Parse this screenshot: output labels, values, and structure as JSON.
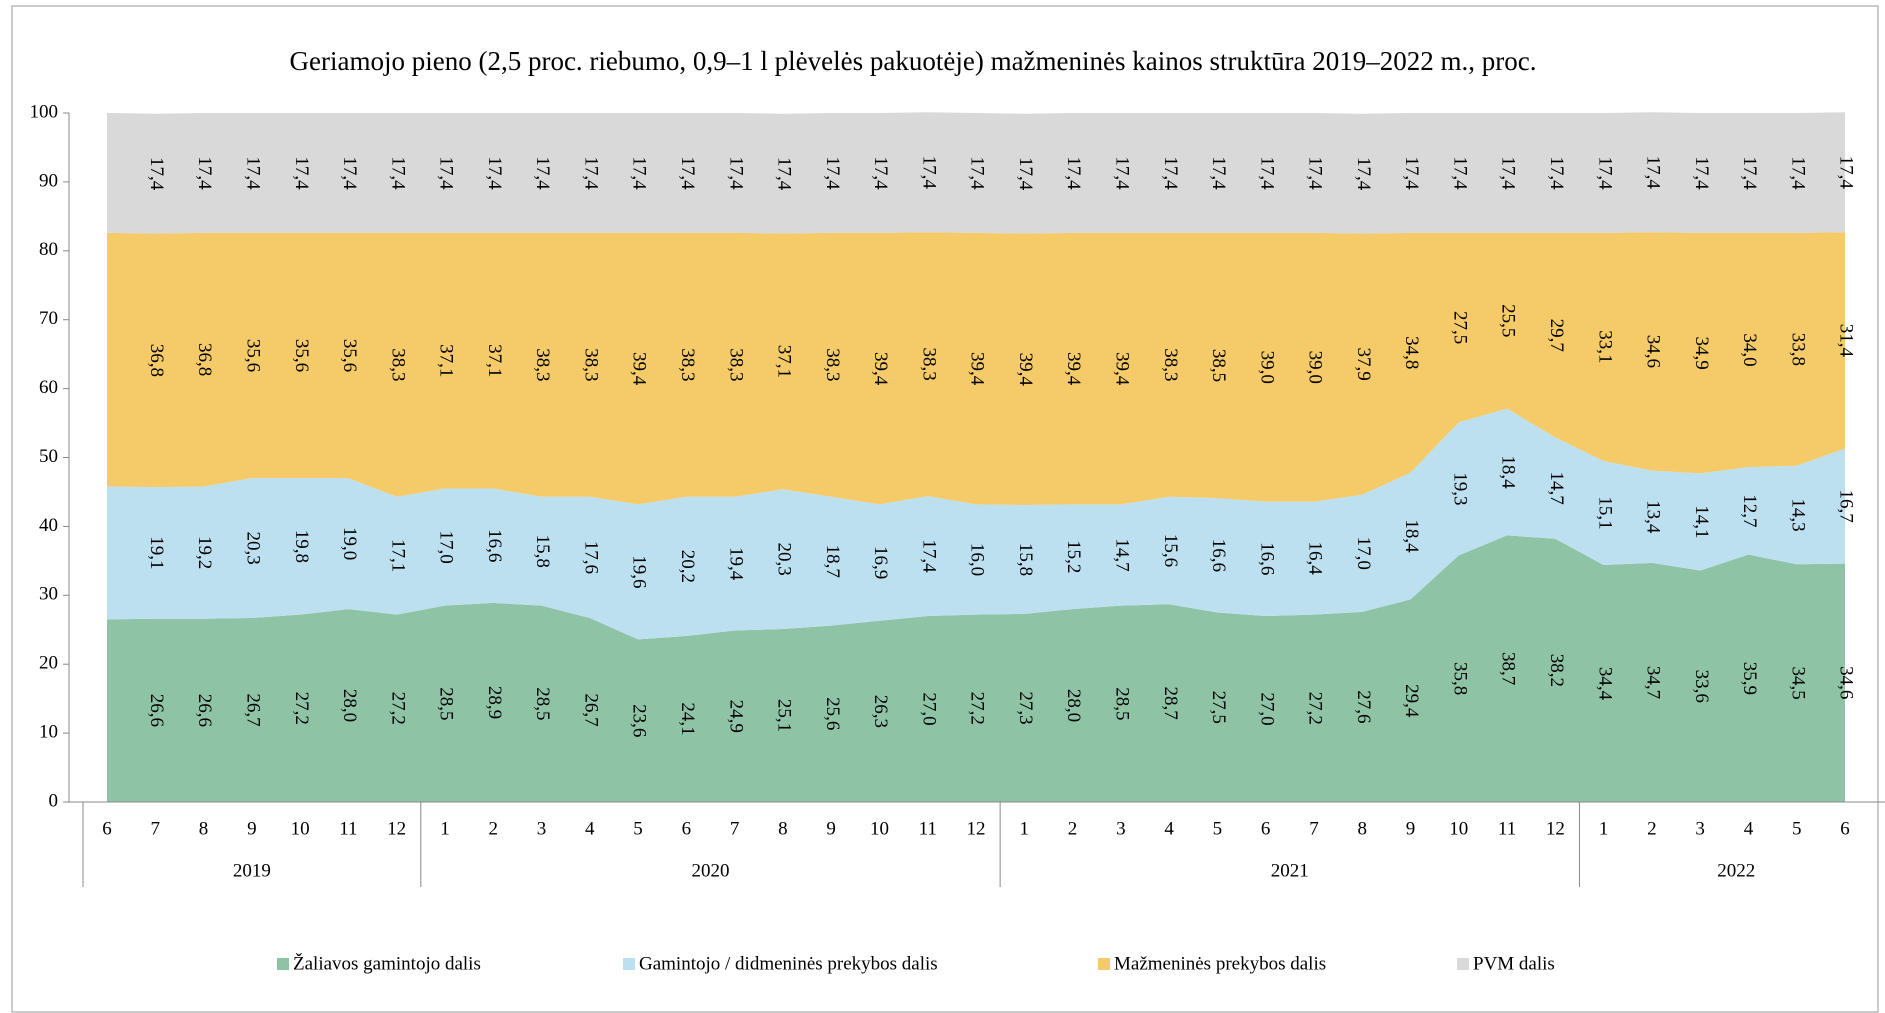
{
  "chart_data": {
    "type": "stacked_area",
    "title": "Geriamojo pieno (2,5 proc. riebumo, 0,9–1 l plėvelės pakuotėje) mažmeninės kainos struktūra 2019–2022 m., proc.",
    "categories": [
      "6",
      "7",
      "8",
      "9",
      "10",
      "11",
      "12",
      "1",
      "2",
      "3",
      "4",
      "5",
      "6",
      "7",
      "8",
      "9",
      "10",
      "11",
      "12",
      "1",
      "2",
      "3",
      "4",
      "5",
      "6",
      "7",
      "8",
      "9",
      "10",
      "11",
      "12",
      "1",
      "2",
      "3",
      "4",
      "5",
      "6"
    ],
    "x_groups": [
      {
        "label": "2019",
        "count": 7
      },
      {
        "label": "2020",
        "count": 12
      },
      {
        "label": "2021",
        "count": 12
      },
      {
        "label": "2022",
        "count": 6
      }
    ],
    "ylim": [
      0,
      100
    ],
    "yticks": [
      0,
      10,
      20,
      30,
      40,
      50,
      60,
      70,
      80,
      90,
      100
    ],
    "series": [
      {
        "name": "Žaliavos gamintojo dalis",
        "color": "#8fc3a6",
        "values": [
          26.5,
          26.6,
          26.6,
          26.7,
          27.2,
          28.0,
          27.2,
          28.5,
          28.9,
          28.5,
          26.7,
          23.6,
          24.1,
          24.9,
          25.1,
          25.6,
          26.3,
          27.0,
          27.2,
          27.3,
          28.0,
          28.5,
          28.7,
          27.5,
          27.0,
          27.2,
          27.6,
          29.4,
          35.8,
          38.7,
          38.2,
          34.4,
          34.7,
          33.6,
          35.9,
          34.5,
          34.6
        ],
        "value_labels": [
          null,
          "26,6",
          "26,6",
          "26,7",
          "27,2",
          "28,0",
          "27,2",
          "28,5",
          "28,9",
          "28,5",
          "26,7",
          "23,6",
          "24,1",
          "24,9",
          "25,1",
          "25,6",
          "26,3",
          "27,0",
          "27,2",
          "27,3",
          "28,0",
          "28,5",
          "28,7",
          "27,5",
          "27,0",
          "27,2",
          "27,6",
          "29,4",
          "35,8",
          "38,7",
          "38,2",
          "34,4",
          "34,7",
          "33,6",
          "35,9",
          "34,5",
          "34,6"
        ]
      },
      {
        "name": "Gamintojo / didmeninės prekybos dalis",
        "color": "#bde0f0",
        "values": [
          19.3,
          19.1,
          19.2,
          20.3,
          19.8,
          19.0,
          17.1,
          17.0,
          16.6,
          15.8,
          17.6,
          19.6,
          20.2,
          19.4,
          20.3,
          18.7,
          16.9,
          17.4,
          16.0,
          15.8,
          15.2,
          14.7,
          15.6,
          16.6,
          16.6,
          16.4,
          17.0,
          18.4,
          19.3,
          18.4,
          14.7,
          15.1,
          13.4,
          14.1,
          12.7,
          14.3,
          16.7
        ],
        "value_labels": [
          null,
          "19,1",
          "19,2",
          "20,3",
          "19,8",
          "19,0",
          "17,1",
          "17,0",
          "16,6",
          "15,8",
          "17,6",
          "19,6",
          "20,2",
          "19,4",
          "20,3",
          "18,7",
          "16,9",
          "17,4",
          "16,0",
          "15,8",
          "15,2",
          "14,7",
          "15,6",
          "16,6",
          "16,6",
          "16,4",
          "17,0",
          "18,4",
          "19,3",
          "18,4",
          "14,7",
          "15,1",
          "13,4",
          "14,1",
          "12,7",
          "14,3",
          "16,7"
        ]
      },
      {
        "name": "Mažmeninės prekybos dalis",
        "color": "#f5ca69",
        "values": [
          36.8,
          36.8,
          36.8,
          35.6,
          35.6,
          35.6,
          38.3,
          37.1,
          37.1,
          38.3,
          38.3,
          39.4,
          38.3,
          38.3,
          37.1,
          38.3,
          39.4,
          38.3,
          39.4,
          39.4,
          39.4,
          39.4,
          38.3,
          38.5,
          39.0,
          39.0,
          37.9,
          34.8,
          27.5,
          25.5,
          29.7,
          33.1,
          34.6,
          34.9,
          34.0,
          33.8,
          31.4
        ],
        "value_labels": [
          null,
          "36,8",
          "36,8",
          "35,6",
          "35,6",
          "35,6",
          "38,3",
          "37,1",
          "37,1",
          "38,3",
          "38,3",
          "39,4",
          "38,3",
          "38,3",
          "37,1",
          "38,3",
          "39,4",
          "38,3",
          "39,4",
          "39,4",
          "39,4",
          "39,4",
          "38,3",
          "38,5",
          "39,0",
          "39,0",
          "37,9",
          "34,8",
          "27,5",
          "25,5",
          "29,7",
          "33,1",
          "34,6",
          "34,9",
          "34,0",
          "33,8",
          "31,4"
        ]
      },
      {
        "name": "PVM dalis",
        "color": "#d9d9d9",
        "values": [
          17.4,
          17.4,
          17.4,
          17.4,
          17.4,
          17.4,
          17.4,
          17.4,
          17.4,
          17.4,
          17.4,
          17.4,
          17.4,
          17.4,
          17.4,
          17.4,
          17.4,
          17.4,
          17.4,
          17.4,
          17.4,
          17.4,
          17.4,
          17.4,
          17.4,
          17.4,
          17.4,
          17.4,
          17.4,
          17.4,
          17.4,
          17.4,
          17.4,
          17.4,
          17.4,
          17.4,
          17.4
        ],
        "value_labels": [
          null,
          "17,4",
          "17,4",
          "17,4",
          "17,4",
          "17,4",
          "17,4",
          "17,4",
          "17,4",
          "17,4",
          "17,4",
          "17,4",
          "17,4",
          "17,4",
          "17,4",
          "17,4",
          "17,4",
          "17,4",
          "17,4",
          "17,4",
          "17,4",
          "17,4",
          "17,4",
          "17,4",
          "17,4",
          "17,4",
          "17,4",
          "17,4",
          "17,4",
          "17,4",
          "17,4",
          "17,4",
          "17,4",
          "17,4",
          "17,4",
          "17,4",
          "17,4"
        ]
      }
    ],
    "legend": "bottom"
  }
}
